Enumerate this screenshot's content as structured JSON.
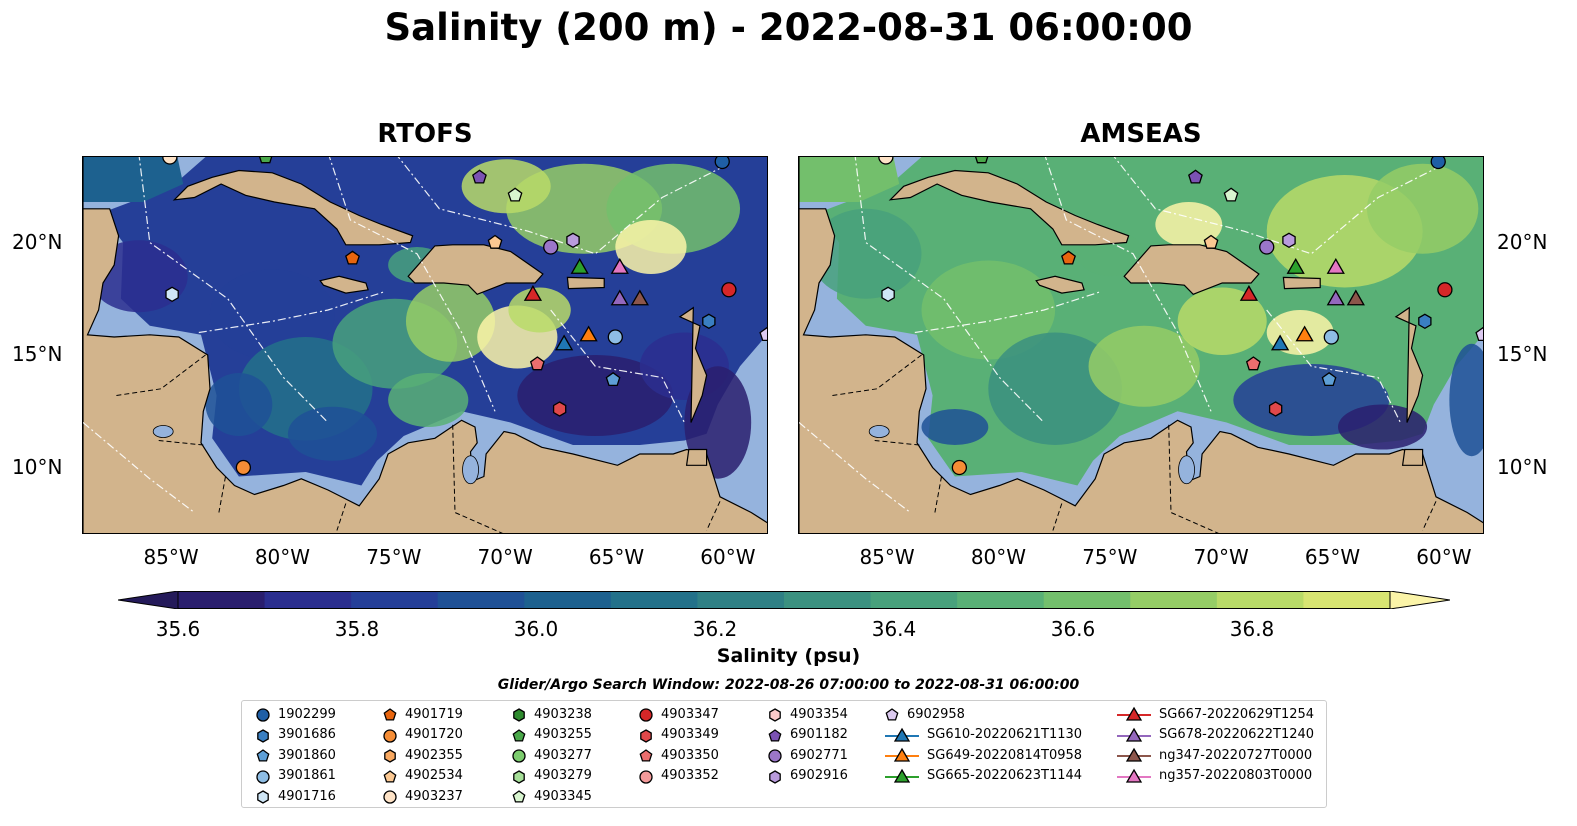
{
  "title": "Salinity (200 m) - 2022-08-31 06:00:00",
  "panels": [
    {
      "title": "RTOFS",
      "palette": "rtofs"
    },
    {
      "title": "AMSEAS",
      "palette": "amseas"
    }
  ],
  "axes": {
    "lat_labels": [
      "20°N",
      "15°N",
      "10°N"
    ],
    "lat_values": [
      20,
      15,
      10
    ],
    "lon_labels": [
      "85°W",
      "80°W",
      "75°W",
      "70°W",
      "65°W",
      "60°W"
    ],
    "lon_values": [
      -85,
      -80,
      -75,
      -70,
      -65,
      -60
    ],
    "lon_range": [
      -89,
      -58.2
    ],
    "lat_range": [
      7,
      23.8
    ]
  },
  "colorbar": {
    "label": "Salinity (psu)",
    "tick_labels": [
      "35.6",
      "35.8",
      "36.0",
      "36.2",
      "36.4",
      "36.6",
      "36.8"
    ],
    "tick_values": [
      35.6,
      35.8,
      36.0,
      36.2,
      36.4,
      36.6,
      36.8
    ],
    "range": [
      35.55,
      36.9
    ],
    "colors": [
      "#2a1e6e",
      "#2b2e8f",
      "#253f98",
      "#1f5196",
      "#1d618f",
      "#23718a",
      "#2f8085",
      "#3b9180",
      "#48a17c",
      "#59b076",
      "#73bf6c",
      "#95cd66",
      "#b8da68",
      "#d7e472"
    ],
    "extend_low": "#241a5a",
    "extend_high": "#fbf4a8"
  },
  "legend": {
    "title": "Glider/Argo Search Window: 2022-08-26 07:00:00 to 2022-08-31 06:00:00",
    "columns": [
      [
        {
          "label": "1902299",
          "marker": "circle",
          "color": "#1f5fa6"
        },
        {
          "label": "3901686",
          "marker": "hexagon",
          "color": "#3a7fc2"
        },
        {
          "label": "3901860",
          "marker": "pentagon",
          "color": "#5e9fd6"
        },
        {
          "label": "3901861",
          "marker": "circle",
          "color": "#8ebde4"
        },
        {
          "label": "4901716",
          "marker": "hexagon",
          "color": "#cfe6f6"
        }
      ],
      [
        {
          "label": "4901719",
          "marker": "pentagon",
          "color": "#e8650e"
        },
        {
          "label": "4901720",
          "marker": "circle",
          "color": "#f58d36"
        },
        {
          "label": "4902355",
          "marker": "hexagon",
          "color": "#f8a860"
        },
        {
          "label": "4902534",
          "marker": "pentagon",
          "color": "#fbc892"
        },
        {
          "label": "4903237",
          "marker": "circle",
          "color": "#fde2c6"
        }
      ],
      [
        {
          "label": "4903238",
          "marker": "hexagon",
          "color": "#2e8b2e"
        },
        {
          "label": "4903255",
          "marker": "pentagon",
          "color": "#4aa84a"
        },
        {
          "label": "4903277",
          "marker": "circle",
          "color": "#7ccc6e"
        },
        {
          "label": "4903279",
          "marker": "hexagon",
          "color": "#a6df98"
        },
        {
          "label": "4903345",
          "marker": "pentagon",
          "color": "#d8f5cf"
        }
      ],
      [
        {
          "label": "4903347",
          "marker": "circle",
          "color": "#d62728"
        },
        {
          "label": "4903349",
          "marker": "hexagon",
          "color": "#e0484a"
        },
        {
          "label": "4903350",
          "marker": "pentagon",
          "color": "#ec6e6e"
        },
        {
          "label": "4903352",
          "marker": "circle",
          "color": "#f49a9a"
        }
      ],
      [
        {
          "label": "4903354",
          "marker": "hexagon",
          "color": "#fbcaca"
        },
        {
          "label": "6901182",
          "marker": "pentagon",
          "color": "#7b52b3"
        },
        {
          "label": "6902771",
          "marker": "circle",
          "color": "#9b76c9"
        },
        {
          "label": "6902916",
          "marker": "hexagon",
          "color": "#b99bdc"
        }
      ],
      [
        {
          "label": "6902958",
          "marker": "pentagon",
          "color": "#dccaf0"
        },
        {
          "label": "SG610-20220621T1130",
          "marker": "triangle-line",
          "color": "#1f77b4"
        },
        {
          "label": "SG649-20220814T0958",
          "marker": "triangle-line",
          "color": "#ff7f0e"
        },
        {
          "label": "SG665-20220623T1144",
          "marker": "triangle-line",
          "color": "#2ca02c"
        }
      ],
      [
        {
          "label": "SG667-20220629T1254",
          "marker": "triangle-line",
          "color": "#d62728"
        },
        {
          "label": "SG678-20220622T1240",
          "marker": "triangle-line",
          "color": "#9467bd"
        },
        {
          "label": "ng347-20220727T0000",
          "marker": "triangle-line",
          "color": "#8c564b"
        },
        {
          "label": "ng357-20220803T0000",
          "marker": "triangle-line",
          "color": "#e377c2"
        }
      ]
    ]
  },
  "markers": [
    {
      "label": "1902299",
      "lon": -60.3,
      "lat": 23.6
    },
    {
      "label": "3901686",
      "lon": -60.9,
      "lat": 16.5
    },
    {
      "label": "3901860",
      "lon": -65.2,
      "lat": 13.9
    },
    {
      "label": "3901861",
      "lon": -65.1,
      "lat": 15.8
    },
    {
      "label": "4901716",
      "lon": -85.0,
      "lat": 17.7
    },
    {
      "label": "4901719",
      "lon": -76.9,
      "lat": 19.3
    },
    {
      "label": "4901720",
      "lon": -81.8,
      "lat": 10.0
    },
    {
      "label": "4902534",
      "lon": -70.5,
      "lat": 20.0
    },
    {
      "label": "4903237",
      "lon": -85.1,
      "lat": 23.8
    },
    {
      "label": "4903255",
      "lon": -80.8,
      "lat": 23.8
    },
    {
      "label": "4903345",
      "lon": -69.6,
      "lat": 22.1
    },
    {
      "label": "4903347",
      "lon": -60.0,
      "lat": 17.9
    },
    {
      "label": "4903349",
      "lon": -67.6,
      "lat": 12.6
    },
    {
      "label": "4903350",
      "lon": -68.6,
      "lat": 14.6
    },
    {
      "label": "6901182",
      "lon": -71.2,
      "lat": 22.9
    },
    {
      "label": "6902771",
      "lon": -68.0,
      "lat": 19.8
    },
    {
      "label": "6902916",
      "lon": -67.0,
      "lat": 20.1
    },
    {
      "label": "6902958",
      "lon": -58.3,
      "lat": 15.9
    },
    {
      "label": "SG610-20220621T1130",
      "lon": -67.4,
      "lat": 15.5
    },
    {
      "label": "SG649-20220814T0958",
      "lon": -66.3,
      "lat": 15.9
    },
    {
      "label": "SG665-20220623T1144",
      "lon": -66.7,
      "lat": 18.9
    },
    {
      "label": "SG667-20220629T1254",
      "lon": -68.8,
      "lat": 17.7
    },
    {
      "label": "SG678-20220622T1240",
      "lon": -64.9,
      "lat": 17.5
    },
    {
      "label": "ng347-20220727T0000",
      "lon": -64.0,
      "lat": 17.5
    },
    {
      "label": "ng357-20220803T0000",
      "lon": -64.9,
      "lat": 18.9
    }
  ]
}
